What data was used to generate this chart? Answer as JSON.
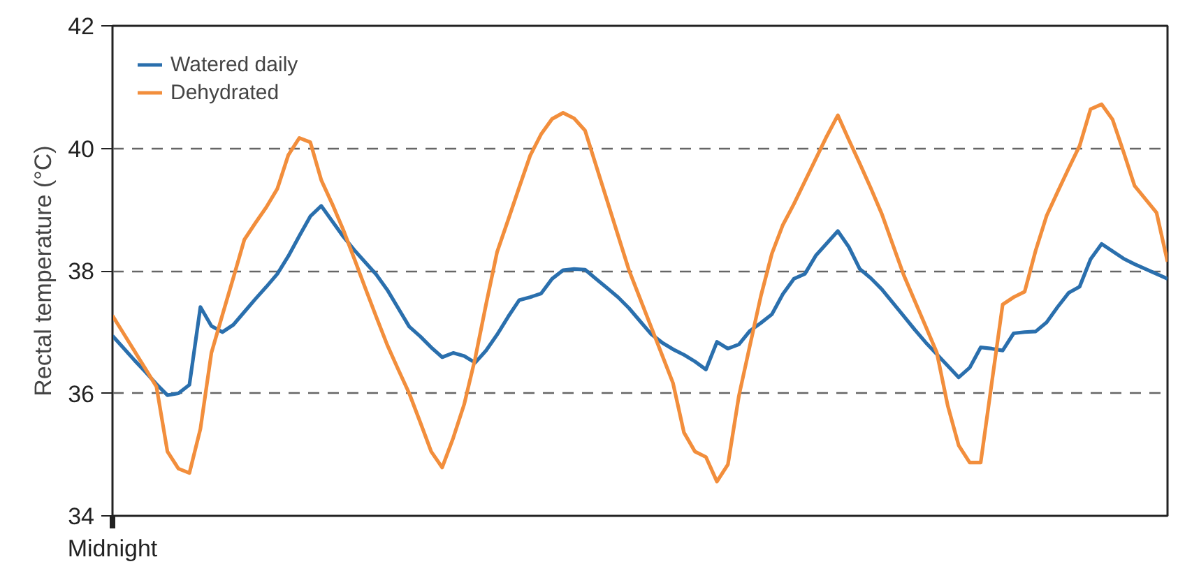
{
  "chart_data": {
    "type": "line",
    "ylabel": "Rectal temperature (°C)",
    "ylim": [
      34,
      42
    ],
    "yticks": [
      34,
      36,
      38,
      40,
      42
    ],
    "grid": "y",
    "legend": "top left",
    "line_style": "solid",
    "categories": [
      "Midnight",
      null,
      null,
      null,
      null,
      null,
      null,
      null,
      null,
      null,
      null,
      null,
      null,
      null,
      null,
      null,
      null,
      null,
      null,
      null,
      null,
      null,
      null,
      null,
      null,
      null,
      null,
      null,
      null,
      null,
      null,
      null,
      null,
      null,
      null,
      null,
      null,
      null,
      null,
      null,
      null,
      null,
      null,
      null,
      null,
      null,
      null,
      null,
      null,
      null,
      null,
      null,
      null,
      null,
      null,
      null,
      null,
      null,
      null,
      null,
      null,
      null,
      null,
      null,
      null,
      null,
      null,
      null,
      null,
      null,
      null,
      null,
      null,
      null,
      null,
      null,
      null,
      null,
      null,
      null,
      null,
      null,
      null,
      null,
      null,
      null,
      null,
      null,
      null,
      null,
      null,
      null,
      null,
      null,
      null,
      null,
      null
    ],
    "series": [
      {
        "name": "Watered daily",
        "color": "#2a6fad",
        "values": [
          36.94,
          36.74,
          36.54,
          36.35,
          36.15,
          35.97,
          36.0,
          36.14,
          37.41,
          37.1,
          37.0,
          37.12,
          37.33,
          37.54,
          37.74,
          37.95,
          38.24,
          38.57,
          38.89,
          39.06,
          38.81,
          38.56,
          38.34,
          38.14,
          37.94,
          37.69,
          37.39,
          37.09,
          36.93,
          36.75,
          36.59,
          36.66,
          36.61,
          36.5,
          36.7,
          36.96,
          37.25,
          37.52,
          37.57,
          37.63,
          37.87,
          38.01,
          38.03,
          38.02,
          37.87,
          37.72,
          37.57,
          37.39,
          37.18,
          36.97,
          36.83,
          36.72,
          36.63,
          36.52,
          36.39,
          36.84,
          36.73,
          36.8,
          37.02,
          37.15,
          37.29,
          37.62,
          37.87,
          37.95,
          38.25,
          38.45,
          38.65,
          38.39,
          38.03,
          37.88,
          37.7,
          37.48,
          37.26,
          37.04,
          36.83,
          36.64,
          36.45,
          36.26,
          36.42,
          36.75,
          36.73,
          36.7,
          36.98,
          37.0,
          37.01,
          37.16,
          37.41,
          37.64,
          37.74,
          38.19,
          38.44,
          38.32,
          38.2,
          38.11,
          38.03,
          37.95,
          37.87
        ]
      },
      {
        "name": "Dehydrated",
        "color": "#f28e3c",
        "values": [
          37.27,
          36.98,
          36.69,
          36.4,
          36.11,
          35.05,
          34.77,
          34.7,
          35.42,
          36.66,
          37.28,
          37.89,
          38.51,
          38.78,
          39.04,
          39.34,
          39.89,
          40.17,
          40.1,
          39.48,
          39.09,
          38.67,
          38.2,
          37.72,
          37.25,
          36.79,
          36.39,
          36.0,
          35.53,
          35.05,
          34.79,
          35.27,
          35.82,
          36.57,
          37.46,
          38.31,
          38.83,
          39.36,
          39.88,
          40.23,
          40.48,
          40.58,
          40.49,
          40.29,
          39.72,
          39.15,
          38.58,
          38.01,
          37.55,
          37.09,
          36.63,
          36.17,
          35.36,
          35.05,
          34.96,
          34.56,
          34.84,
          35.96,
          36.78,
          37.59,
          38.28,
          38.75,
          39.09,
          39.46,
          39.83,
          40.2,
          40.54,
          40.14,
          39.75,
          39.35,
          38.93,
          38.43,
          37.93,
          37.51,
          37.09,
          36.67,
          35.8,
          35.15,
          34.87,
          34.87,
          36.16,
          37.45,
          37.57,
          37.66,
          38.33,
          38.9,
          39.29,
          39.67,
          40.04,
          40.64,
          40.72,
          40.47,
          39.94,
          39.39,
          39.17,
          38.95,
          38.15
        ]
      }
    ]
  }
}
